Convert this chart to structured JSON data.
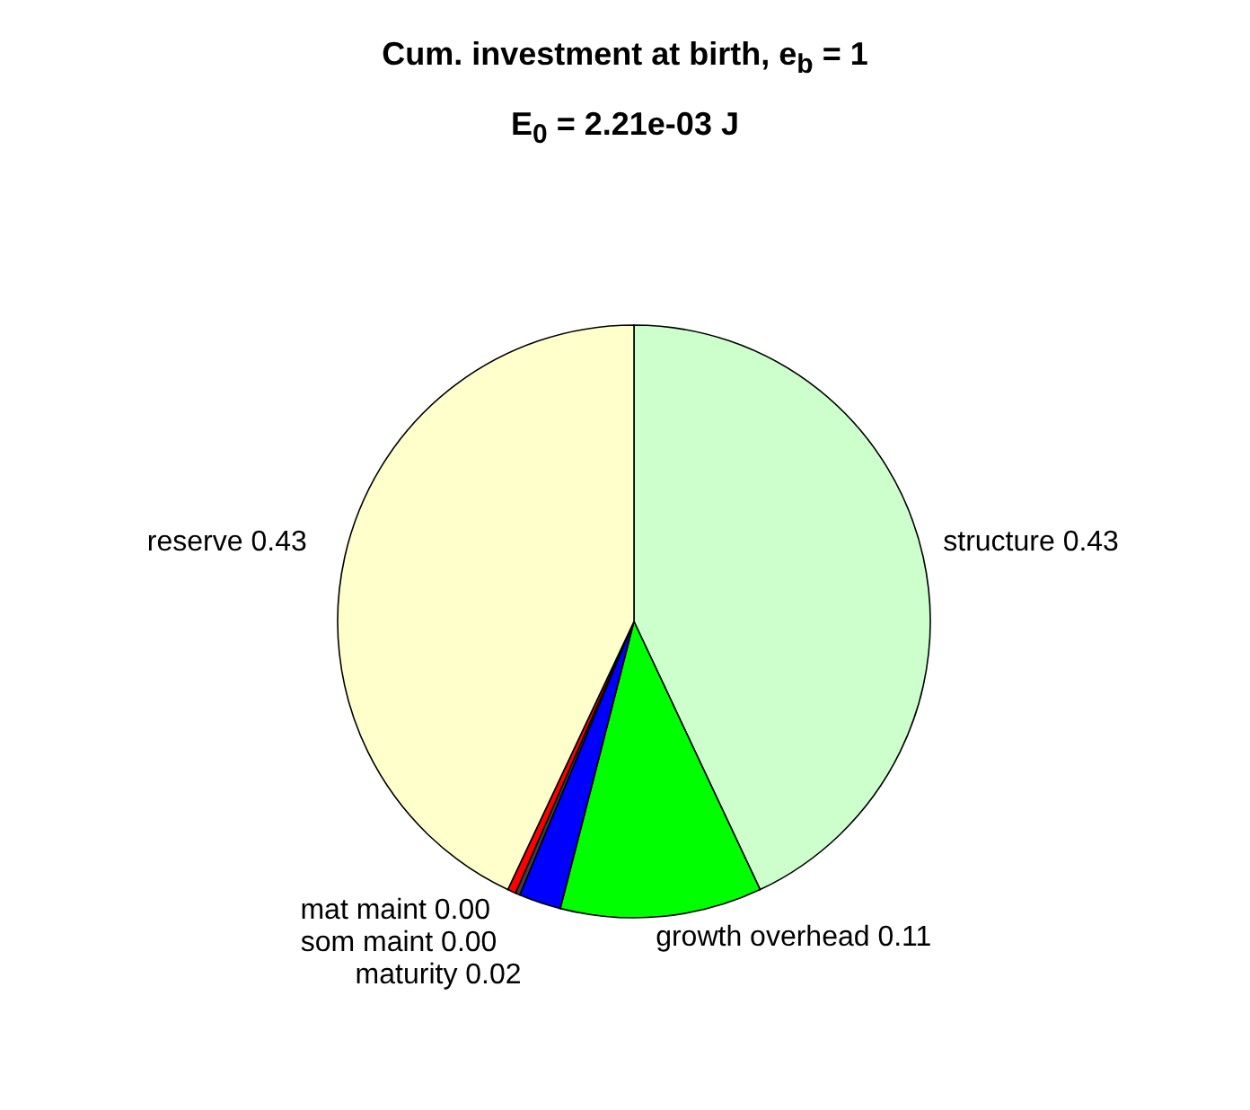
{
  "chart_data": {
    "type": "pie",
    "title": "Cum. investment at birth, e$_{b}$ = 1",
    "subtitle": "E$_{0}$ = 2.21e-03 J",
    "categories": [
      "structure",
      "growth overhead",
      "maturity",
      "som maint",
      "mat maint",
      "reserve"
    ],
    "values": [
      0.43,
      0.11,
      0.023,
      0.0025,
      0.0045,
      0.43
    ],
    "value_labels": [
      "0.43",
      "0.11",
      "0.02",
      "0.00",
      "0.00",
      "0.43"
    ],
    "colors": [
      "#ccffcc",
      "#00ff00",
      "#0000ff",
      "#404040",
      "#ff0000",
      "#ffffcc"
    ],
    "legend": false
  }
}
